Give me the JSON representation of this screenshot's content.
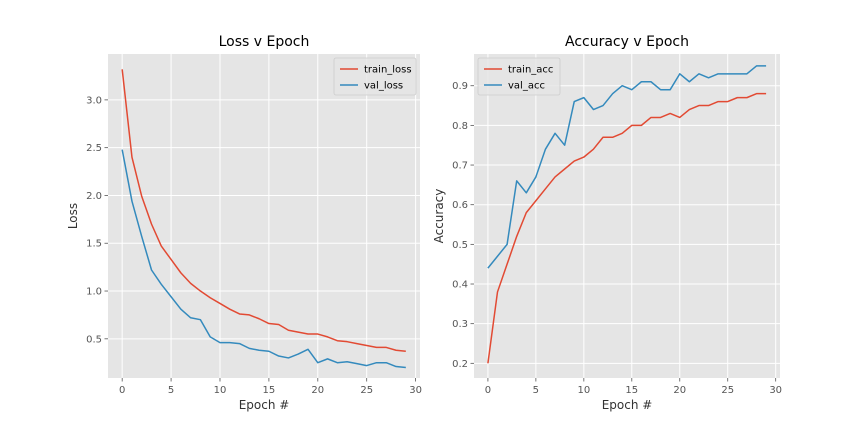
{
  "chart_data": [
    {
      "type": "line",
      "title": "Loss v Epoch",
      "xlabel": "Epoch #",
      "ylabel": "Loss",
      "xlim": [
        -1.45,
        30.45
      ],
      "ylim": [
        0.09,
        3.48
      ],
      "x_ticks": [
        0,
        5,
        10,
        15,
        20,
        25,
        30
      ],
      "y_ticks": [
        0.5,
        1.0,
        1.5,
        2.0,
        2.5,
        3.0
      ],
      "y_tick_labels": [
        "0.5",
        "1.0",
        "1.5",
        "2.0",
        "2.5",
        "3.0"
      ],
      "grid": true,
      "legend_position": "top-right",
      "x": [
        0,
        1,
        2,
        3,
        4,
        5,
        6,
        7,
        8,
        9,
        10,
        11,
        12,
        13,
        14,
        15,
        16,
        17,
        18,
        19,
        20,
        21,
        22,
        23,
        24,
        25,
        26,
        27,
        28,
        29
      ],
      "series": [
        {
          "name": "train_loss",
          "color": "#e24a33",
          "values": [
            3.32,
            2.4,
            1.99,
            1.7,
            1.47,
            1.33,
            1.19,
            1.08,
            1.0,
            0.93,
            0.87,
            0.81,
            0.76,
            0.75,
            0.71,
            0.66,
            0.65,
            0.59,
            0.57,
            0.55,
            0.55,
            0.52,
            0.48,
            0.47,
            0.45,
            0.43,
            0.41,
            0.41,
            0.38,
            0.37
          ]
        },
        {
          "name": "val_loss",
          "color": "#348abd",
          "values": [
            2.48,
            1.94,
            1.57,
            1.22,
            1.07,
            0.94,
            0.81,
            0.72,
            0.7,
            0.52,
            0.46,
            0.46,
            0.45,
            0.4,
            0.38,
            0.37,
            0.32,
            0.3,
            0.34,
            0.39,
            0.25,
            0.29,
            0.25,
            0.26,
            0.24,
            0.22,
            0.25,
            0.25,
            0.21,
            0.2
          ]
        }
      ]
    },
    {
      "type": "line",
      "title": "Accuracy v Epoch",
      "xlabel": "Epoch #",
      "ylabel": "Accuracy",
      "xlim": [
        -1.45,
        30.45
      ],
      "ylim": [
        0.163,
        0.98
      ],
      "x_ticks": [
        0,
        5,
        10,
        15,
        20,
        25,
        30
      ],
      "y_ticks": [
        0.2,
        0.3,
        0.4,
        0.5,
        0.6,
        0.7,
        0.8,
        0.9
      ],
      "y_tick_labels": [
        "0.2",
        "0.3",
        "0.4",
        "0.5",
        "0.6",
        "0.7",
        "0.8",
        "0.9"
      ],
      "grid": true,
      "legend_position": "top-left",
      "x": [
        0,
        1,
        2,
        3,
        4,
        5,
        6,
        7,
        8,
        9,
        10,
        11,
        12,
        13,
        14,
        15,
        16,
        17,
        18,
        19,
        20,
        21,
        22,
        23,
        24,
        25,
        26,
        27,
        28,
        29
      ],
      "series": [
        {
          "name": "train_acc",
          "color": "#e24a33",
          "values": [
            0.2,
            0.38,
            0.45,
            0.52,
            0.58,
            0.61,
            0.64,
            0.67,
            0.69,
            0.71,
            0.72,
            0.74,
            0.77,
            0.77,
            0.78,
            0.8,
            0.8,
            0.82,
            0.82,
            0.83,
            0.82,
            0.84,
            0.85,
            0.85,
            0.86,
            0.86,
            0.87,
            0.87,
            0.88,
            0.88
          ]
        },
        {
          "name": "val_acc",
          "color": "#348abd",
          "values": [
            0.44,
            0.47,
            0.5,
            0.66,
            0.63,
            0.67,
            0.74,
            0.78,
            0.75,
            0.86,
            0.87,
            0.84,
            0.85,
            0.88,
            0.9,
            0.89,
            0.91,
            0.91,
            0.89,
            0.89,
            0.93,
            0.91,
            0.93,
            0.92,
            0.93,
            0.93,
            0.93,
            0.93,
            0.95,
            0.95
          ]
        }
      ]
    }
  ]
}
